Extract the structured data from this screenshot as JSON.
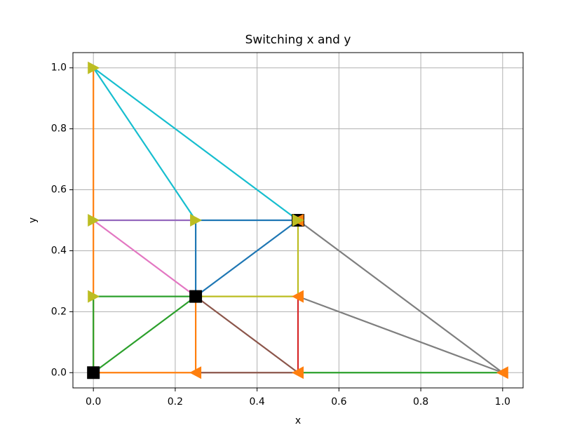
{
  "chart_data": {
    "type": "line",
    "title": "Switching x and y",
    "xlabel": "x",
    "ylabel": "y",
    "xlim": [
      -0.05,
      1.05
    ],
    "ylim": [
      -0.05,
      1.05
    ],
    "xticks": [
      {
        "value": 0,
        "label": "0.0"
      },
      0.2,
      0.4,
      0.6,
      0.8,
      {
        "value": 1,
        "label": "1.0"
      }
    ],
    "yticks": [
      {
        "value": 0,
        "label": "0.0"
      },
      0.2,
      0.4,
      0.6,
      0.8,
      {
        "value": 1,
        "label": "1.0"
      }
    ],
    "grid": true,
    "series": [
      {
        "color": "#1f77b4",
        "x": [
          0.25,
          0.25,
          0.5,
          0.25
        ],
        "values": [
          0.25,
          0.5,
          0.5,
          0.25
        ]
      },
      {
        "color": "#ff7f0e",
        "x": [
          0,
          0,
          0.25,
          0.25
        ],
        "values": [
          1,
          0,
          0,
          0.25
        ]
      },
      {
        "color": "#2ca02c",
        "x": [
          0,
          0.25,
          0,
          0
        ],
        "values": [
          0,
          0.25,
          0.25,
          0
        ]
      },
      {
        "color": "#2ca02c",
        "x": [
          0.5,
          1
        ],
        "values": [
          0,
          0
        ]
      },
      {
        "color": "#d62728",
        "x": [
          0.5,
          0.5
        ],
        "values": [
          0,
          0.25
        ]
      },
      {
        "color": "#9467bd",
        "x": [
          0,
          0.25
        ],
        "values": [
          0.5,
          0.5
        ]
      },
      {
        "color": "#8c564b",
        "x": [
          0.25,
          0.5,
          0.25
        ],
        "values": [
          0.25,
          0,
          0
        ]
      },
      {
        "color": "#e377c2",
        "x": [
          0,
          0.25
        ],
        "values": [
          0.5,
          0.25
        ]
      },
      {
        "color": "#7f7f7f",
        "x": [
          0.5,
          1,
          0.5
        ],
        "values": [
          0.5,
          0,
          0.25
        ]
      },
      {
        "color": "#bcbd22",
        "x": [
          0.25,
          0.5,
          0.5
        ],
        "values": [
          0.25,
          0.25,
          0.5
        ]
      },
      {
        "color": "#17becf",
        "x": [
          0.25,
          0,
          0.5
        ],
        "values": [
          0.5,
          1,
          0.5
        ]
      },
      {
        "color": "#000000",
        "marker": "square",
        "x": [
          0,
          0.25,
          0.5
        ],
        "values": [
          0,
          0.25,
          0.5
        ]
      },
      {
        "color": "#ff7f0e",
        "marker": "triangle-left",
        "x": [
          0.25,
          0.5,
          0.5,
          1,
          0.5
        ],
        "values": [
          0,
          0,
          0.25,
          0,
          0.5
        ]
      },
      {
        "color": "#bcbd22",
        "marker": "triangle-right",
        "x": [
          0,
          0,
          0,
          0.25,
          0.5
        ],
        "values": [
          1,
          0.5,
          0.25,
          0.5,
          0.5
        ]
      }
    ]
  }
}
